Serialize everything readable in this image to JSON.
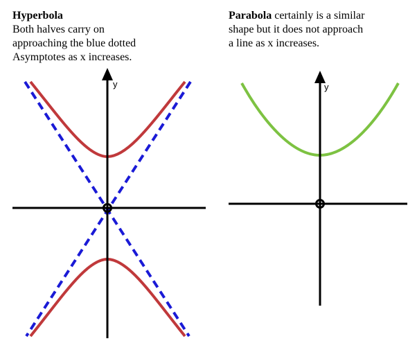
{
  "left_panel": {
    "heading": "Hyperbola",
    "lines": [
      "Both halves carry on",
      "approaching the blue dotted",
      "Asymptotes as x increases."
    ],
    "axis_label": "y"
  },
  "right_panel": {
    "heading": "Parabola",
    "lines": [
      " certainly is a similar",
      "shape but it does not approach",
      " a line as x increases."
    ],
    "axis_label": "y"
  },
  "colors": {
    "hyperbola": "#c0393b",
    "asymptote": "#1a1ad6",
    "parabola": "#7dc242",
    "axis": "#000000"
  }
}
